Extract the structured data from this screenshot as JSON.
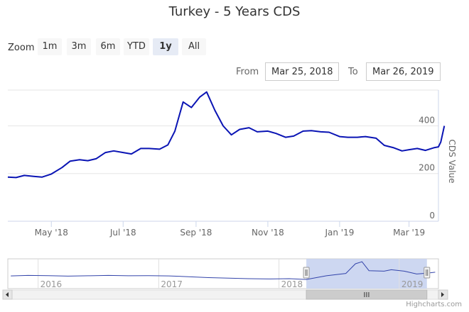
{
  "title": "Turkey - 5 Years CDS",
  "zoom": {
    "label": "Zoom",
    "buttons": [
      {
        "label": "1m",
        "active": false
      },
      {
        "label": "3m",
        "active": false
      },
      {
        "label": "6m",
        "active": false
      },
      {
        "label": "YTD",
        "active": false
      },
      {
        "label": "1y",
        "active": true
      },
      {
        "label": "All",
        "active": false
      }
    ]
  },
  "range": {
    "from_label": "From",
    "from_value": "Mar 25, 2018",
    "to_label": "To",
    "to_value": "Mar 26, 2019"
  },
  "credits": "Highcharts.com",
  "colors": {
    "series": "#0a14b4",
    "navigator_fill": "#c4d0ee",
    "navigator_line": "#3344aa",
    "grid": "#e6e6e6"
  },
  "chart_data": {
    "type": "line",
    "title": "Turkey - 5 Years CDS",
    "ylabel": "CDS Value",
    "ylim": [
      0,
      550
    ],
    "yticks": [
      "0",
      "200",
      "400"
    ],
    "y_axis_position": "right",
    "grid": true,
    "xlim": [
      "2018-03-25",
      "2019-03-26"
    ],
    "xticks": [
      "May '18",
      "Jul '18",
      "Sep '18",
      "Nov '18",
      "Jan '19",
      "Mar '19"
    ],
    "series": [
      {
        "points": [
          [
            "2018-03-25",
            185
          ],
          [
            "2018-04-01",
            183
          ],
          [
            "2018-04-08",
            192
          ],
          [
            "2018-04-16",
            188
          ],
          [
            "2018-04-23",
            185
          ],
          [
            "2018-05-01",
            198
          ],
          [
            "2018-05-10",
            225
          ],
          [
            "2018-05-17",
            252
          ],
          [
            "2018-05-25",
            258
          ],
          [
            "2018-06-01",
            254
          ],
          [
            "2018-06-08",
            262
          ],
          [
            "2018-06-16",
            288
          ],
          [
            "2018-06-23",
            295
          ],
          [
            "2018-07-01",
            288
          ],
          [
            "2018-07-08",
            282
          ],
          [
            "2018-07-16",
            305
          ],
          [
            "2018-07-23",
            305
          ],
          [
            "2018-08-01",
            302
          ],
          [
            "2018-08-08",
            320
          ],
          [
            "2018-08-14",
            378
          ],
          [
            "2018-08-21",
            500
          ],
          [
            "2018-08-28",
            477
          ],
          [
            "2018-09-04",
            520
          ],
          [
            "2018-09-10",
            542
          ],
          [
            "2018-09-17",
            465
          ],
          [
            "2018-09-24",
            400
          ],
          [
            "2018-10-01",
            362
          ],
          [
            "2018-10-08",
            385
          ],
          [
            "2018-10-16",
            392
          ],
          [
            "2018-10-23",
            375
          ],
          [
            "2018-11-01",
            378
          ],
          [
            "2018-11-08",
            368
          ],
          [
            "2018-11-16",
            352
          ],
          [
            "2018-11-23",
            357
          ],
          [
            "2018-12-01",
            378
          ],
          [
            "2018-12-08",
            380
          ],
          [
            "2018-12-16",
            375
          ],
          [
            "2018-12-23",
            373
          ],
          [
            "2019-01-01",
            355
          ],
          [
            "2019-01-08",
            352
          ],
          [
            "2019-01-16",
            352
          ],
          [
            "2019-01-23",
            355
          ],
          [
            "2019-02-01",
            348
          ],
          [
            "2019-02-08",
            318
          ],
          [
            "2019-02-16",
            308
          ],
          [
            "2019-02-23",
            295
          ],
          [
            "2019-03-01",
            300
          ],
          [
            "2019-03-08",
            305
          ],
          [
            "2019-03-15",
            297
          ],
          [
            "2019-03-22",
            308
          ],
          [
            "2019-03-26",
            312
          ],
          [
            "2019-03-28",
            332
          ],
          [
            "2019-03-31",
            400
          ]
        ]
      }
    ],
    "navigator": {
      "xlim": [
        "2015-10-01",
        "2019-04-30"
      ],
      "xticks": [
        "2016",
        "2017",
        "2018",
        "2019"
      ],
      "selected_range": [
        "2018-03-25",
        "2019-03-26"
      ],
      "ylim": [
        0,
        600
      ],
      "points": [
        [
          "2015-10-10",
          255
        ],
        [
          "2015-12-01",
          265
        ],
        [
          "2016-02-01",
          260
        ],
        [
          "2016-04-01",
          252
        ],
        [
          "2016-06-01",
          258
        ],
        [
          "2016-08-01",
          265
        ],
        [
          "2016-10-01",
          258
        ],
        [
          "2016-12-01",
          262
        ],
        [
          "2017-02-01",
          255
        ],
        [
          "2017-04-01",
          240
        ],
        [
          "2017-06-01",
          222
        ],
        [
          "2017-08-01",
          210
        ],
        [
          "2017-10-01",
          200
        ],
        [
          "2017-12-01",
          195
        ],
        [
          "2018-02-01",
          200
        ],
        [
          "2018-03-25",
          185
        ],
        [
          "2018-05-25",
          258
        ],
        [
          "2018-07-23",
          305
        ],
        [
          "2018-08-21",
          500
        ],
        [
          "2018-09-10",
          542
        ],
        [
          "2018-10-01",
          362
        ],
        [
          "2018-11-16",
          352
        ],
        [
          "2018-12-08",
          380
        ],
        [
          "2019-01-16",
          352
        ],
        [
          "2019-02-23",
          295
        ],
        [
          "2019-03-26",
          312
        ],
        [
          "2019-04-20",
          330
        ]
      ]
    }
  }
}
